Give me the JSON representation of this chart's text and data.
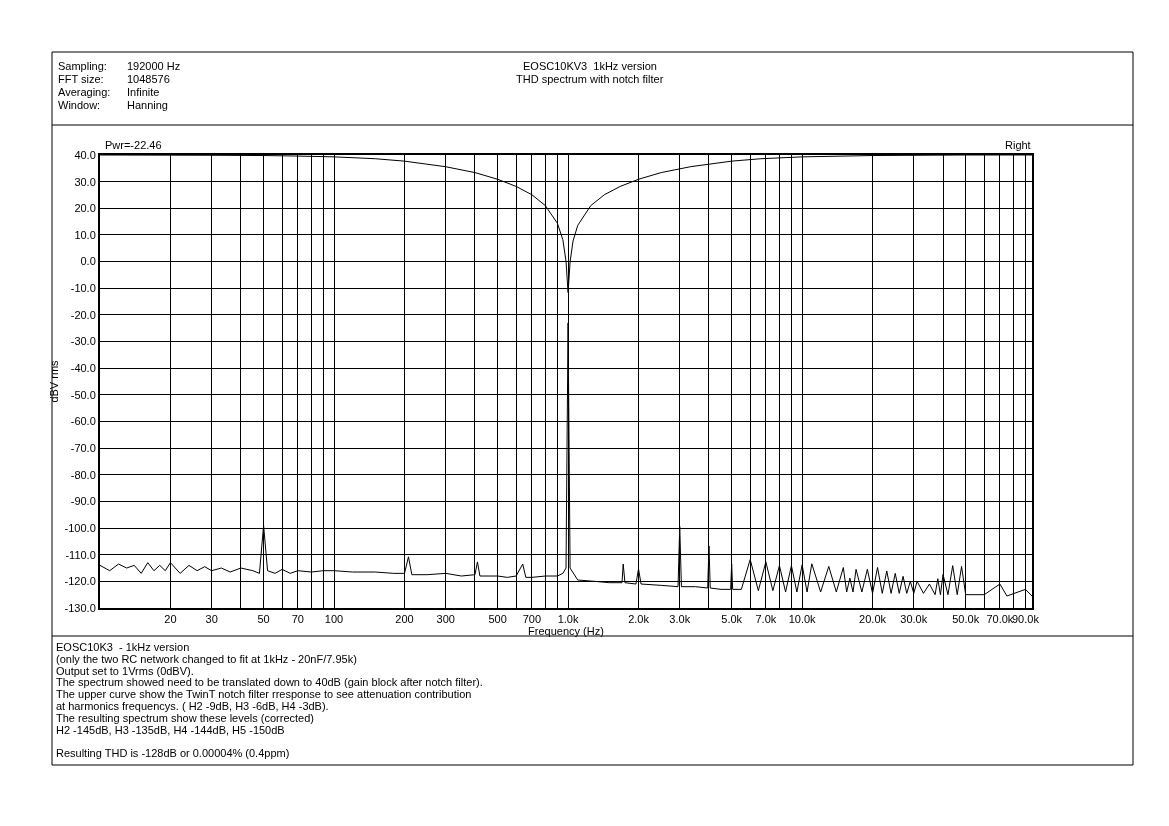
{
  "chart_data": {
    "type": "line",
    "title": "EOSC10KV3  1kHz version",
    "subtitle": "THD spectrum with notch filter",
    "xlabel": "Frequency (Hz)",
    "ylabel": "dBV rms",
    "log": "x",
    "grid": true,
    "marker": "none",
    "line_style": "solid",
    "xlim": [
      10,
      96000
    ],
    "xticks": [
      20,
      30,
      {
        "value": 40,
        "label": null
      },
      50,
      {
        "value": 60,
        "label": null
      },
      70,
      {
        "value": 80,
        "label": null
      },
      {
        "value": 90,
        "label": null
      },
      100,
      200,
      300,
      {
        "value": 400,
        "label": null
      },
      500,
      {
        "value": 600,
        "label": null
      },
      700,
      {
        "value": 800,
        "label": null
      },
      {
        "value": 900,
        "label": null
      },
      {
        "value": 1000,
        "label": "1.0k"
      },
      {
        "value": 2000,
        "label": "2.0k"
      },
      {
        "value": 3000,
        "label": "3.0k"
      },
      {
        "value": 4000,
        "label": null
      },
      {
        "value": 5000,
        "label": "5.0k"
      },
      {
        "value": 6000,
        "label": null
      },
      {
        "value": 7000,
        "label": "7.0k"
      },
      {
        "value": 8000,
        "label": null
      },
      {
        "value": 9000,
        "label": null
      },
      {
        "value": 10000,
        "label": "10.0k"
      },
      {
        "value": 20000,
        "label": "20.0k"
      },
      {
        "value": 30000,
        "label": "30.0k"
      },
      {
        "value": 40000,
        "label": null
      },
      {
        "value": 50000,
        "label": "50.0k"
      },
      {
        "value": 60000,
        "label": null
      },
      {
        "value": 70000,
        "label": "70.0k"
      },
      {
        "value": 80000,
        "label": null
      },
      {
        "value": 90000,
        "label": "90.0k"
      }
    ],
    "ylim": [
      -130,
      40
    ],
    "yticks": [
      {
        "value": 40,
        "label": "40.0"
      },
      {
        "value": 30,
        "label": "30.0"
      },
      {
        "value": 20,
        "label": "20.0"
      },
      {
        "value": 10,
        "label": "10.0"
      },
      {
        "value": 0,
        "label": "0.0"
      },
      {
        "value": -10,
        "label": "-10.0"
      },
      {
        "value": -20,
        "label": "-20.0"
      },
      {
        "value": -30,
        "label": "-30.0"
      },
      {
        "value": -40,
        "label": "-40.0"
      },
      {
        "value": -50,
        "label": "-50.0"
      },
      {
        "value": -60,
        "label": "-60.0"
      },
      {
        "value": -70,
        "label": "-70.0"
      },
      {
        "value": -80,
        "label": "-80.0"
      },
      {
        "value": -90,
        "label": "-90.0"
      },
      {
        "value": -100,
        "label": "-100.0"
      },
      {
        "value": -110,
        "label": "-110.0"
      },
      {
        "value": -120,
        "label": "-120.0"
      },
      {
        "value": -130,
        "label": "-130.0"
      }
    ],
    "series": [
      {
        "color": "#000000",
        "x": [
          10,
          30,
          50,
          70,
          100,
          150,
          200,
          300,
          400,
          500,
          600,
          700,
          800,
          900,
          950,
          980,
          1000,
          1020,
          1050,
          1100,
          1250,
          1430,
          1670,
          2000,
          2500,
          3330,
          5000,
          6670,
          10000,
          20000,
          50000,
          96000
        ],
        "values": [
          40.0,
          39.9,
          39.8,
          39.6,
          39.3,
          38.6,
          37.7,
          35.6,
          33.4,
          30.9,
          28.2,
          25.1,
          21.0,
          14.4,
          8.2,
          0.1,
          -11.6,
          -0.1,
          7.7,
          13.6,
          21.0,
          25.1,
          28.2,
          30.9,
          33.4,
          35.6,
          37.7,
          38.6,
          39.3,
          39.8,
          40.0,
          40.0
        ]
      },
      {
        "color": "#000000",
        "x": [
          10,
          11,
          12,
          13,
          14,
          15,
          16,
          17,
          18,
          19,
          20,
          22,
          24,
          26,
          28,
          30,
          33,
          36,
          40,
          45,
          48,
          50,
          52,
          56,
          60,
          65,
          70,
          80,
          90,
          100,
          120,
          150,
          180,
          200,
          208,
          215,
          250,
          300,
          350,
          400,
          410,
          420,
          500,
          550,
          600,
          640,
          660,
          700,
          800,
          900,
          950,
          980,
          1000,
          1020,
          1100,
          1300,
          1500,
          1700,
          1720,
          1750,
          1950,
          2000,
          2050,
          2500,
          2950,
          3000,
          3050,
          3500,
          3950,
          4000,
          4050,
          4500,
          4950,
          5000,
          5050,
          5500,
          6000,
          6500,
          7000,
          7500,
          8000,
          8500,
          9000,
          9500,
          10000,
          10500,
          11000,
          12000,
          13000,
          14000,
          15000,
          15500,
          16000,
          16500,
          17000,
          18000,
          19000,
          20000,
          21000,
          22000,
          23000,
          24000,
          25000,
          26000,
          27000,
          28000,
          29000,
          30000,
          31000,
          33000,
          35000,
          37000,
          38000,
          39000,
          40000,
          42000,
          44000,
          46000,
          48000,
          50000,
          60000,
          70000,
          75000,
          90000,
          96000
        ],
        "values": [
          -114,
          -116,
          -113.5,
          -115,
          -114,
          -117,
          -113,
          -116,
          -114,
          -116,
          -113,
          -117,
          -114,
          -116,
          -114.5,
          -116,
          -115,
          -116.5,
          -115,
          -116,
          -117,
          -99,
          -116,
          -117,
          -115.5,
          -117,
          -116,
          -116.5,
          -116,
          -116,
          -116.5,
          -116.5,
          -117,
          -117,
          -110.8,
          -117.5,
          -117.5,
          -117,
          -118,
          -117.5,
          -112.7,
          -118,
          -118,
          -118.5,
          -118,
          -113.5,
          -118.5,
          -118.5,
          -118,
          -118,
          -117,
          -115,
          -23,
          -115,
          -119.5,
          -120,
          -120.5,
          -120.5,
          -113.5,
          -120.5,
          -121,
          -115.3,
          -121,
          -121.5,
          -122,
          -99.4,
          -122,
          -122,
          -122.5,
          -106.7,
          -122.5,
          -123,
          -123,
          -113.4,
          -123,
          -123,
          -111.8,
          -123.5,
          -112.7,
          -123.5,
          -114.1,
          -124,
          -114.1,
          -124,
          -113.8,
          -124,
          -113.4,
          -124,
          -114.4,
          -124,
          -114.8,
          -124,
          -118.8,
          -124,
          -115.5,
          -124,
          -115.5,
          -124.5,
          -114.8,
          -124.5,
          -116.1,
          -124.5,
          -117,
          -124.5,
          -118.1,
          -124.5,
          -120,
          -124.5,
          -120,
          -124.5,
          -121,
          -125,
          -119,
          -125,
          -117.4,
          -125,
          -114.1,
          -125,
          -114.4,
          -125,
          -125,
          -121,
          -125.5,
          -123,
          -125.5
        ]
      }
    ],
    "annotations": [
      "Sampling:\t192000 Hz",
      "FFT size:\t1048576",
      "Averaging:\tInfinite",
      "Window:\tHanning",
      "Pwr=-22.46",
      "Right",
      "EOSC10K3  - 1kHz version\n(only the two RC network changed to fit at 1kHz - 20nF/7.95k)\nOutput set to 1Vrms (0dBV).\nThe spectrum showed need to be translated down to 40dB (gain block after notch filter).\nThe upper curve show the TwinT notch filter rresponse to see attenuation contribution\nat harmonics frequencys. ( H2 -9dB, H3 -6dB, H4 -3dB).\nThe resulting spectrum show these levels (corrected)\nH2 -145dB, H3 -135dB, H4 -144dB, H5 -150dB\n\nResulting THD is -128dB or 0.00004% (0.4ppm)"
    ]
  }
}
